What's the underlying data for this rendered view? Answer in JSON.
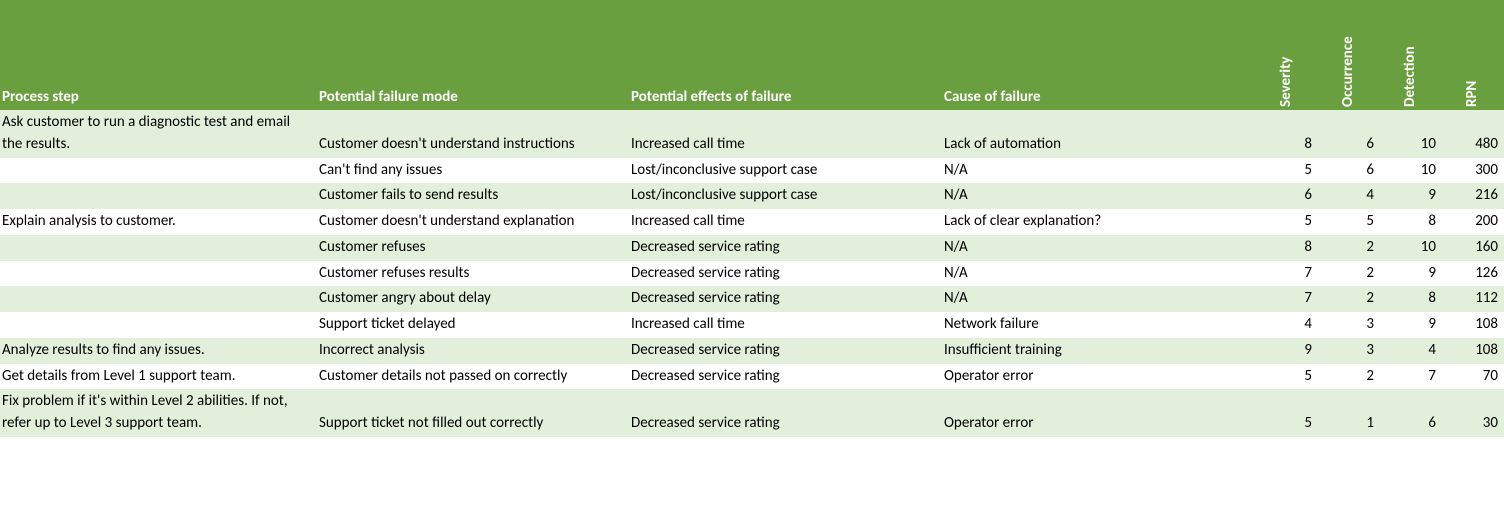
{
  "header_bg": "#6a9f3f",
  "band_bg": "#e2efdb",
  "noband_bg": "#ffffff",
  "text_color": "#000000",
  "header_text_color": "#ffffff",
  "font_family": "Calibri",
  "font_size_pt": 11,
  "columns": [
    {
      "key": "process_step",
      "label": "Process step",
      "rotated": false
    },
    {
      "key": "failure_mode",
      "label": "Potential failure mode",
      "rotated": false
    },
    {
      "key": "effects",
      "label": "Potential effects of failure",
      "rotated": false
    },
    {
      "key": "cause",
      "label": "Cause of failure",
      "rotated": false
    },
    {
      "key": "severity",
      "label": "Severity",
      "rotated": true
    },
    {
      "key": "occurrence",
      "label": "Occurrence",
      "rotated": true
    },
    {
      "key": "detection",
      "label": "Detection",
      "rotated": true
    },
    {
      "key": "rpn",
      "label": "RPN",
      "rotated": true
    }
  ],
  "rows": [
    {
      "band": true,
      "process_step": "Ask customer to run a diagnostic test and email the results.",
      "failure_mode": "Customer doesn't understand instructions",
      "effects": "Increased call time",
      "cause": "Lack of automation",
      "severity": 8,
      "occurrence": 6,
      "detection": 10,
      "rpn": 480
    },
    {
      "band": false,
      "process_step": "",
      "failure_mode": "Can't find any issues",
      "effects": "Lost/inconclusive support case",
      "cause": "N/A",
      "severity": 5,
      "occurrence": 6,
      "detection": 10,
      "rpn": 300
    },
    {
      "band": true,
      "process_step": "",
      "failure_mode": "Customer fails to send results",
      "effects": "Lost/inconclusive support case",
      "cause": "N/A",
      "severity": 6,
      "occurrence": 4,
      "detection": 9,
      "rpn": 216
    },
    {
      "band": false,
      "process_step": "Explain analysis to customer.",
      "failure_mode": "Customer doesn't understand explanation",
      "effects": "Increased call time",
      "cause": "Lack of clear explanation?",
      "severity": 5,
      "occurrence": 5,
      "detection": 8,
      "rpn": 200
    },
    {
      "band": true,
      "process_step": "",
      "failure_mode": "Customer refuses",
      "effects": "Decreased service rating",
      "cause": "N/A",
      "severity": 8,
      "occurrence": 2,
      "detection": 10,
      "rpn": 160
    },
    {
      "band": false,
      "process_step": "",
      "failure_mode": "Customer refuses results",
      "effects": "Decreased service rating",
      "cause": "N/A",
      "severity": 7,
      "occurrence": 2,
      "detection": 9,
      "rpn": 126
    },
    {
      "band": true,
      "process_step": "",
      "failure_mode": "Customer angry about delay",
      "effects": "Decreased service rating",
      "cause": "N/A",
      "severity": 7,
      "occurrence": 2,
      "detection": 8,
      "rpn": 112
    },
    {
      "band": false,
      "process_step": "",
      "failure_mode": "Support ticket delayed",
      "effects": "Increased call time",
      "cause": "Network failure",
      "severity": 4,
      "occurrence": 3,
      "detection": 9,
      "rpn": 108
    },
    {
      "band": true,
      "process_step": "Analyze results to find any issues.",
      "failure_mode": "Incorrect analysis",
      "effects": "Decreased service rating",
      "cause": "Insufficient training",
      "severity": 9,
      "occurrence": 3,
      "detection": 4,
      "rpn": 108
    },
    {
      "band": false,
      "process_step": "Get details from Level 1 support team.",
      "failure_mode": "Customer details not passed on correctly",
      "effects": "Decreased service rating",
      "cause": "Operator error",
      "severity": 5,
      "occurrence": 2,
      "detection": 7,
      "rpn": 70
    },
    {
      "band": true,
      "process_step": "Fix problem if it's within Level 2 abilities. If not, refer up to Level 3 support team.",
      "failure_mode": "Support ticket not filled out correctly",
      "effects": "Decreased service rating",
      "cause": "Operator error",
      "severity": 5,
      "occurrence": 1,
      "detection": 6,
      "rpn": 30
    }
  ]
}
